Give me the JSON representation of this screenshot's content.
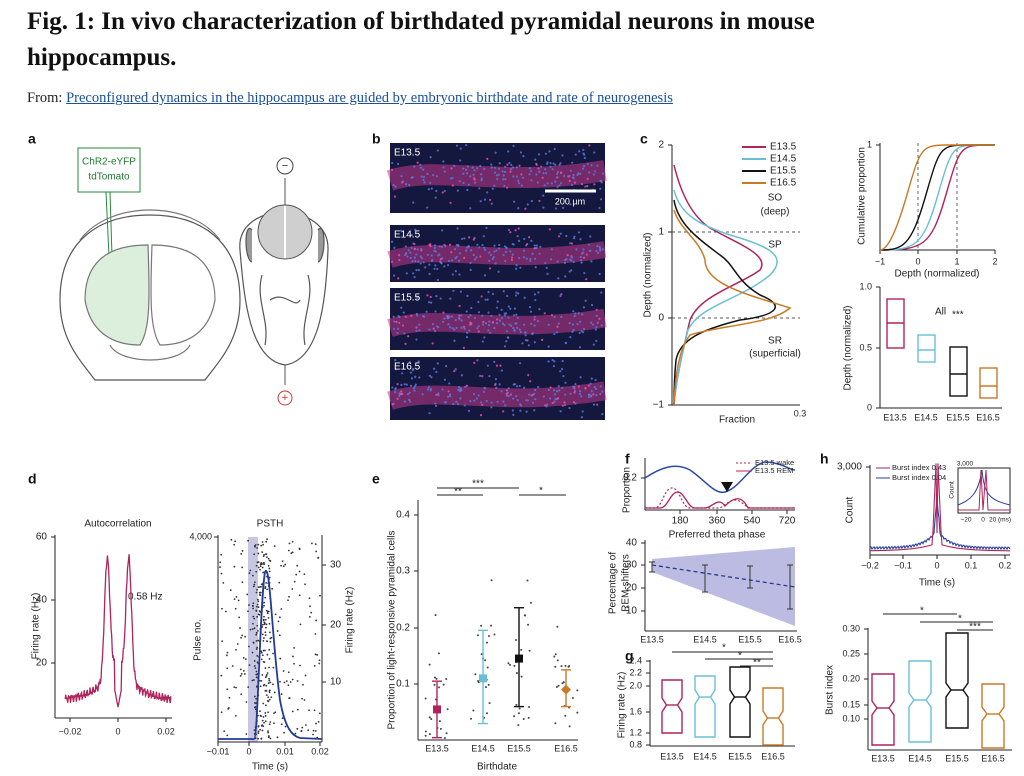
{
  "header": {
    "title": "Fig. 1: In vivo characterization of birthdated pyramidal neurons in mouse hippocampus.",
    "from": "From:",
    "link": "Preconfigured dynamics in the hippocampus are guided by embryonic birthdate and rate of neurogenesis"
  },
  "panels": {
    "a": {
      "label": "a",
      "virus": [
        "ChR2-eYFP",
        "tdTomato"
      ],
      "minus": "−",
      "plus": "+"
    },
    "b": {
      "label": "b",
      "rows": [
        "E13.5",
        "E14.5",
        "E15.5",
        "E16.5"
      ],
      "scale": "200 µm"
    },
    "c": {
      "label": "c",
      "legend": [
        "E13.5",
        "E14.5",
        "E15.5",
        "E16.5"
      ],
      "yticks": [
        "2",
        "1",
        "0",
        "−1"
      ],
      "ylabel": "Depth (normalized)",
      "xlabel": "Fraction",
      "xtick": "0.3",
      "regions": [
        "SO",
        "(deep)",
        "SP",
        "SR",
        "(superficial)"
      ],
      "cum_ylabel": "Cumulative proportion",
      "cum_ytick": "1",
      "cum_xticks": [
        "−1",
        "0",
        "1",
        "2"
      ],
      "cum_xlabel": "Depth (normalized)",
      "box_yticks": [
        "1.0",
        "0.5",
        "0"
      ],
      "box_ylabel": "Depth (normalized)",
      "box_note": "All",
      "box_stars": "***",
      "categories": [
        "E13.5",
        "E14.5",
        "E15.5",
        "E16.5"
      ]
    },
    "d": {
      "label": "d",
      "auto_title": "Autocorrelation",
      "auto_yticks": [
        "60",
        "40",
        "20"
      ],
      "auto_ylabel": "Firing rate (Hz)",
      "auto_note": "0.58 Hz",
      "auto_xticks": [
        "−0.02",
        "0",
        "0.02"
      ],
      "psth_title": "PSTH",
      "psth_ytick": "4,000",
      "psth_ylabel": "Pulse no.",
      "psth_y2ticks": [
        "30",
        "20",
        "10"
      ],
      "psth_y2label": "Firing rate (Hz)",
      "psth_xticks": [
        "−0.01",
        "0",
        "0.01",
        "0.02"
      ],
      "xlabel": "Time (s)"
    },
    "e": {
      "label": "e",
      "yticks": [
        "0.4",
        "0.3",
        "0.2",
        "0.1"
      ],
      "ylabel": "Proportion of light-responsive pyramidal cells",
      "categories": [
        "E13.5",
        "E14.5",
        "E15.5",
        "E16.5"
      ],
      "xlabel": "Birthdate",
      "sig": [
        "***",
        "**",
        "*"
      ]
    },
    "f": {
      "label": "f",
      "ylabel": "Proportion",
      "ytick": "0.2",
      "legend": [
        "E13.5 wake",
        "E13.5 REM"
      ],
      "xticks": [
        "180",
        "360",
        "540",
        "720"
      ],
      "xlabel": "Preferred theta phase",
      "lower_ylabel": [
        "Percentage of",
        "REM-shifters"
      ],
      "lower_yticks": [
        "40",
        "30",
        "20",
        "10"
      ],
      "categories": [
        "E13.5",
        "E14.5",
        "E15.5",
        "E16.5"
      ]
    },
    "g": {
      "label": "g",
      "yticks": [
        "2.4",
        "2.2",
        "2.0",
        "1.6",
        "1.2",
        "0.8"
      ],
      "ylabel": "Firing rate (Hz)",
      "categories": [
        "E13.5",
        "E14.5",
        "E15.5",
        "E16.5"
      ],
      "sig": [
        "*",
        "*",
        "**"
      ]
    },
    "h": {
      "label": "h",
      "ytick": "3,000",
      "ylabel": "Count",
      "legend": [
        "Burst index 0.43",
        "Burst index 0.04"
      ],
      "inset_ytick": "3,000",
      "inset_ylabel": "Count",
      "inset_xticks": [
        "−20",
        "0",
        "20 (ms)"
      ],
      "xticks": [
        "−0.2",
        "−0.1",
        "0",
        "0.1",
        "0.2"
      ],
      "xlabel": "Time (s)",
      "box_yticks": [
        "0.30",
        "0.25",
        "0.20",
        "0.15",
        "0.10"
      ],
      "box_ylabel": "Burst index",
      "categories": [
        "E13.5",
        "E14.5",
        "E15.5",
        "E16.5"
      ],
      "sig": [
        "*",
        "*",
        "***"
      ]
    }
  }
}
